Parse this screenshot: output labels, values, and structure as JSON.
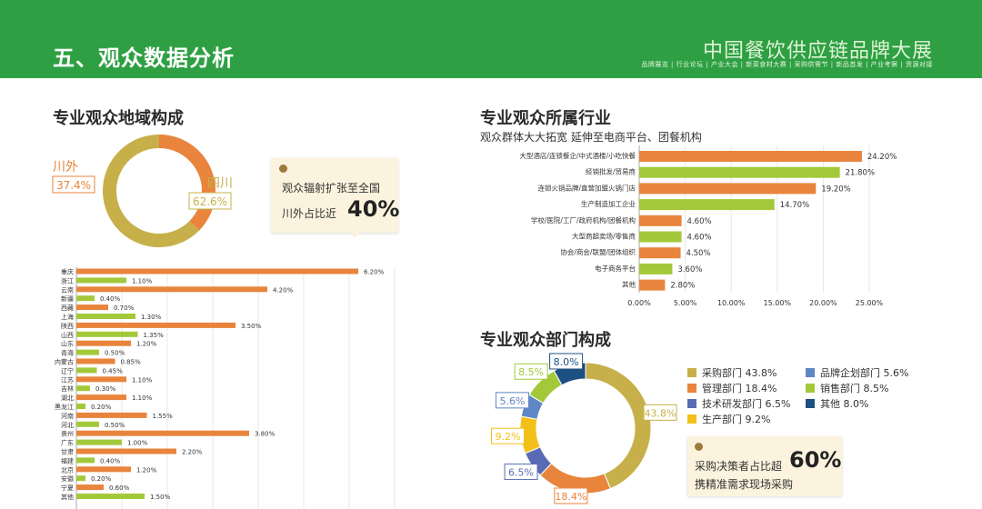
{
  "header": {
    "title": "五、观众数据分析",
    "brand": "中国餐饮供应链品牌大展",
    "brand_sub": "品牌展览 | 行业论坛 | 产业大会 | 新菜食材大赛 | 采购供需节 | 新品首发 | 产业考察 | 资源对接"
  },
  "colors": {
    "green": "#2ea043",
    "orange": "#e8843c",
    "olive": "#c7b04a",
    "lime": "#a3c93a",
    "blue": "#5f86c5",
    "gray_purple": "#5a6bb5",
    "yellow": "#f3c01a",
    "navy": "#1c4f82"
  },
  "region": {
    "title": "专业观众地域构成",
    "chart_data": {
      "type": "pie",
      "slices": [
        {
          "name": "川外",
          "label": "37.4%",
          "value": 37.4,
          "color": "#e8843c"
        },
        {
          "name": "四川",
          "label": "62.6%",
          "value": 62.6,
          "color": "#c7b04a"
        }
      ]
    },
    "note": {
      "line1": "观众辐射扩张至全国",
      "line2": "川外占比近",
      "big": "40%"
    },
    "province_chart": {
      "type": "bar",
      "categories": [
        "重庆",
        "浙江",
        "云南",
        "新疆",
        "西藏",
        "上海",
        "陕西",
        "山西",
        "山东",
        "青海",
        "内蒙古",
        "辽宁",
        "江苏",
        "吉林",
        "湖北",
        "黑龙江",
        "河南",
        "河北",
        "贵州",
        "广东",
        "甘肃",
        "福建",
        "北京",
        "安徽",
        "宁夏",
        "其他"
      ],
      "labels": [
        "6.20%",
        "1.10%",
        "4.20%",
        "0.40%",
        "0.70%",
        "1.30%",
        "3.50%",
        "1.35%",
        "1.20%",
        "0.50%",
        "0.85%",
        "0.45%",
        "1.10%",
        "0.30%",
        "1.10%",
        "0.20%",
        "1.55%",
        "0.50%",
        "3.80%",
        "1.00%",
        "2.20%",
        "0.40%",
        "1.20%",
        "0.20%",
        "0.60%",
        "1.50%"
      ],
      "values": [
        6.2,
        1.1,
        4.2,
        0.4,
        0.7,
        1.3,
        3.5,
        1.35,
        1.2,
        0.5,
        0.85,
        0.45,
        1.1,
        0.3,
        1.1,
        0.2,
        1.55,
        0.5,
        3.8,
        1.0,
        2.2,
        0.4,
        1.2,
        0.2,
        0.6,
        1.5
      ],
      "xlim": [
        0,
        7
      ]
    }
  },
  "industry": {
    "title": "专业观众所属行业",
    "subtitle": "观众群体大大拓宽 延伸至电商平台、团餐机构",
    "chart_data": {
      "type": "bar",
      "categories": [
        "大型酒店/连锁餐企/中式酒楼/小吃快餐",
        "经销批发/贸易商",
        "连锁火锅品牌/直营加盟火锅门店",
        "生产制造加工企业",
        "学校/医院/工厂/政府机构/团餐机构",
        "大型商超卖场/零售商",
        "协会/商会/联盟/团体组织",
        "电子商务平台",
        "其他"
      ],
      "labels": [
        "24.20%",
        "21.80%",
        "19.20%",
        "14.70%",
        "4.60%",
        "4.60%",
        "4.50%",
        "3.60%",
        "2.80%"
      ],
      "values": [
        24.2,
        21.8,
        19.2,
        14.7,
        4.6,
        4.6,
        4.5,
        3.6,
        2.8
      ],
      "ticks": [
        "0.00%",
        "5.00%",
        "10.00%",
        "15.00%",
        "20.00%",
        "25.00%"
      ],
      "xlim": [
        0,
        25
      ]
    }
  },
  "department": {
    "title": "专业观众部门构成",
    "chart_data": {
      "type": "pie",
      "slices": [
        {
          "name": "采购部门",
          "value": 43.8,
          "label": "43.8%",
          "color": "#c7b04a"
        },
        {
          "name": "管理部门",
          "value": 18.4,
          "label": "18.4%",
          "color": "#e8843c"
        },
        {
          "name": "技术研发部门",
          "value": 6.5,
          "label": "6.5%",
          "color": "#5a6bb5"
        },
        {
          "name": "生产部门",
          "value": 9.2,
          "label": "9.2%",
          "color": "#f3c01a"
        },
        {
          "name": "品牌企划部门",
          "value": 5.6,
          "label": "5.6%",
          "color": "#5f86c5"
        },
        {
          "name": "销售部门",
          "value": 8.5,
          "label": "8.5%",
          "color": "#a3c93a"
        },
        {
          "name": "其他",
          "value": 8.0,
          "label": "8.0%",
          "color": "#1c4f82"
        }
      ]
    },
    "legend": [
      {
        "text": "采购部门 43.8%",
        "color": "#c7b04a"
      },
      {
        "text": "品牌企划部门 5.6%",
        "color": "#5f86c5"
      },
      {
        "text": "管理部门 18.4%",
        "color": "#e8843c"
      },
      {
        "text": "销售部门 8.5%",
        "color": "#a3c93a"
      },
      {
        "text": "技术研发部门 6.5%",
        "color": "#5a6bb5"
      },
      {
        "text": "其他 8.0%",
        "color": "#1c4f82"
      },
      {
        "text": "生产部门 9.2%",
        "color": "#f3c01a"
      }
    ],
    "note": {
      "line1": "采购决策者占比超",
      "big": "60%",
      "line2": "携精准需求现场采购"
    }
  }
}
